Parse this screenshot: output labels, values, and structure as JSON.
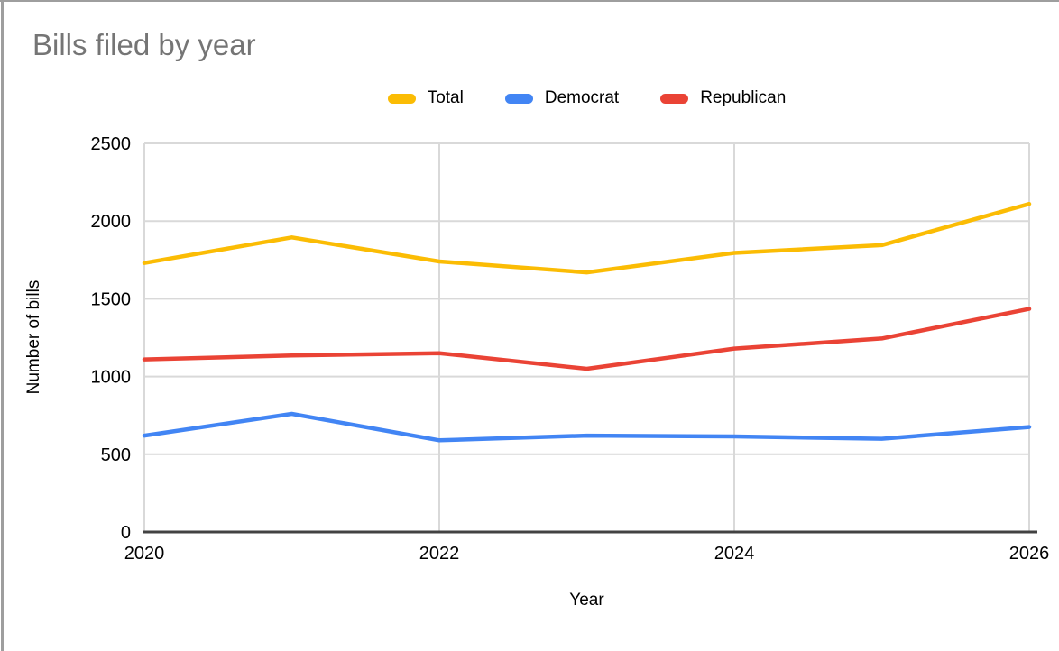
{
  "window": {
    "background": "#ffffff",
    "border_color": "#9e9e9e"
  },
  "chart": {
    "title": "Bills filed by year",
    "title_color": "#757575"
  },
  "chart_data": {
    "type": "line",
    "title": "Bills filed by year",
    "xlabel": "Year",
    "ylabel": "Number of bills",
    "x": [
      2020,
      2021,
      2022,
      2023,
      2024,
      2025,
      2026
    ],
    "series": [
      {
        "name": "Total",
        "color": "#FBBC04",
        "values": [
          1730,
          1895,
          1740,
          1670,
          1795,
          1845,
          2110
        ]
      },
      {
        "name": "Democrat",
        "color": "#4285F4",
        "values": [
          620,
          760,
          590,
          620,
          615,
          600,
          675
        ]
      },
      {
        "name": "Republican",
        "color": "#EA4335",
        "values": [
          1110,
          1135,
          1150,
          1050,
          1180,
          1245,
          1435
        ]
      }
    ],
    "ylim": [
      0,
      2500
    ],
    "yticks": [
      0,
      500,
      1000,
      1500,
      2000,
      2500
    ],
    "xticks": [
      2020,
      2022,
      2024,
      2026
    ],
    "xtick_labels": [
      "2020",
      "2022",
      "2024",
      "2026"
    ],
    "grid": "on",
    "gridline_color": "#d9d9d9",
    "axis_line_color": "#424242",
    "legend_position": "top",
    "line_width": 4.5
  }
}
